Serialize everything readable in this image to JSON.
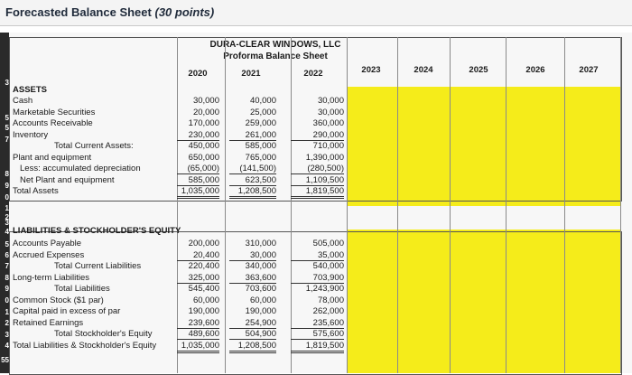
{
  "title": {
    "main": "Forecasted Balance Sheet",
    "points": "(30 points)"
  },
  "company": {
    "name": "DURA-CLEAR WINDOWS, LLC",
    "statement": "Proforma Balance Sheet"
  },
  "years": [
    "2020",
    "2021",
    "2022",
    "2023",
    "2024",
    "2025",
    "2026",
    "2027"
  ],
  "row_numbers": [
    "3",
    "",
    "5",
    "5",
    "7",
    "8",
    "9",
    "0",
    "1",
    "2",
    "3",
    "4",
    "5",
    "6",
    "7",
    "8",
    "9",
    "0",
    "1",
    "2",
    "3",
    "4",
    "55"
  ],
  "assets_header": "ASSETS",
  "assets": [
    {
      "label": "Cash",
      "v2020": "30,000",
      "v2021": "40,000",
      "v2022": "30,000"
    },
    {
      "label": "Marketable Securities",
      "v2020": "20,000",
      "v2021": "25,000",
      "v2022": "30,000"
    },
    {
      "label": "Accounts Receivable",
      "v2020": "170,000",
      "v2021": "259,000",
      "v2022": "360,000"
    },
    {
      "label": "Inventory",
      "v2020": "230,000",
      "v2021": "261,000",
      "v2022": "290,000"
    },
    {
      "label": "Total Current Assets:",
      "v2020": "450,000",
      "v2021": "585,000",
      "v2022": "710,000"
    },
    {
      "label": "Plant and equipment",
      "v2020": "650,000",
      "v2021": "765,000",
      "v2022": "1,390,000"
    },
    {
      "label": "Less: accumulated depreciation",
      "v2020": "(65,000)",
      "v2021": "(141,500)",
      "v2022": "(280,500)"
    },
    {
      "label": "Net Plant and equipment",
      "v2020": "585,000",
      "v2021": "623,500",
      "v2022": "1,109,500"
    },
    {
      "label": "Total Assets",
      "v2020": "1,035,000",
      "v2021": "1,208,500",
      "v2022": "1,819,500"
    }
  ],
  "liab_header": "LIABILITIES & STOCKHOLDER'S EQUITY",
  "liabilities": [
    {
      "label": "Accounts Payable",
      "v2020": "200,000",
      "v2021": "310,000",
      "v2022": "505,000"
    },
    {
      "label": "Accrued Expenses",
      "v2020": "20,400",
      "v2021": "30,000",
      "v2022": "35,000"
    },
    {
      "label": "Total Current Liabilities",
      "v2020": "220,400",
      "v2021": "340,000",
      "v2022": "540,000"
    },
    {
      "label": "Long-term Liabilities",
      "v2020": "325,000",
      "v2021": "363,600",
      "v2022": "703,900"
    },
    {
      "label": "Total Liabilities",
      "v2020": "545,400",
      "v2021": "703,600",
      "v2022": "1,243,900"
    },
    {
      "label": "Common Stock ($1 par)",
      "v2020": "60,000",
      "v2021": "60,000",
      "v2022": "78,000"
    },
    {
      "label": "Capital paid in excess of par",
      "v2020": "190,000",
      "v2021": "190,000",
      "v2022": "262,000"
    },
    {
      "label": "Retained Earnings",
      "v2020": "239,600",
      "v2021": "254,900",
      "v2022": "235,600"
    },
    {
      "label": "Total Stockholder's Equity",
      "v2020": "489,600",
      "v2021": "504,900",
      "v2022": "575,600"
    },
    {
      "label": "Total Liabilities & Stockholder's Equity",
      "v2020": "1,035,000",
      "v2021": "1,208,500",
      "v2022": "1,819,500"
    }
  ],
  "colors": {
    "forecast_fill": "#f5ec1a"
  }
}
